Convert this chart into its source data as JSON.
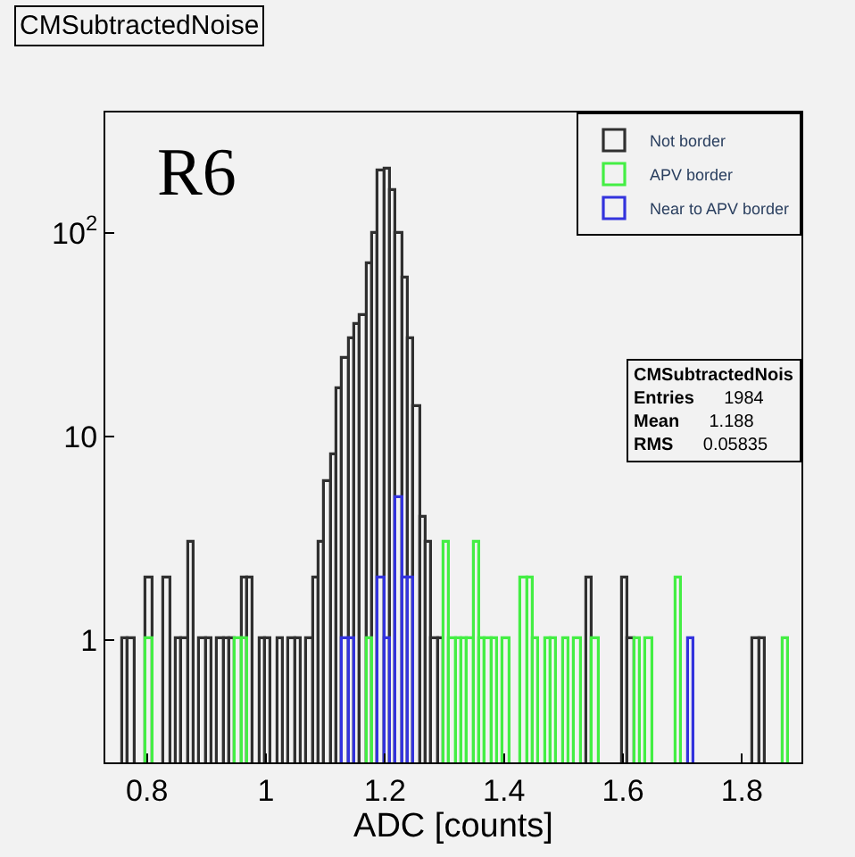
{
  "chart_data": {
    "type": "histogram",
    "title": "CMSubtractedNoise",
    "xlabel": "ADC [counts]",
    "bins": [
      0.73,
      0.74,
      0.75,
      0.76,
      0.77,
      0.78,
      0.79,
      0.8,
      0.81,
      0.82,
      0.83,
      0.84,
      0.85,
      0.86,
      0.87,
      0.88,
      0.89,
      0.9,
      0.91,
      0.92,
      0.93,
      0.94,
      0.95,
      0.96,
      0.97,
      0.98,
      0.99,
      1.0,
      1.01,
      1.02,
      1.03,
      1.04,
      1.05,
      1.06,
      1.07,
      1.08,
      1.09,
      1.1,
      1.11,
      1.12,
      1.13,
      1.14,
      1.15,
      1.16,
      1.17,
      1.18,
      1.19,
      1.2,
      1.21,
      1.22,
      1.23,
      1.24,
      1.25,
      1.26,
      1.27,
      1.28,
      1.29,
      1.3,
      1.31,
      1.32,
      1.33,
      1.34,
      1.35,
      1.36,
      1.37,
      1.38,
      1.39,
      1.4,
      1.41,
      1.42,
      1.43,
      1.44,
      1.45,
      1.46,
      1.47,
      1.48,
      1.49,
      1.5,
      1.51,
      1.52,
      1.53,
      1.54,
      1.55,
      1.56,
      1.57,
      1.58,
      1.59,
      1.6,
      1.61,
      1.62,
      1.63,
      1.64,
      1.65,
      1.66,
      1.67,
      1.68,
      1.69,
      1.7,
      1.71,
      1.72,
      1.73,
      1.74,
      1.75,
      1.76,
      1.77,
      1.78,
      1.79,
      1.8,
      1.81,
      1.82,
      1.83,
      1.84,
      1.85,
      1.86,
      1.87,
      1.88,
      1.89,
      1.9
    ],
    "series": [
      {
        "name": "Not border",
        "color": "#303030",
        "values": [
          null,
          null,
          null,
          1,
          1,
          null,
          null,
          2,
          null,
          null,
          2,
          null,
          1,
          1,
          3,
          null,
          1,
          1,
          null,
          1,
          1,
          1,
          null,
          2,
          2,
          null,
          1,
          1,
          null,
          1,
          null,
          1,
          1,
          null,
          1,
          2,
          3,
          6,
          8,
          17,
          24,
          30,
          35,
          39,
          70,
          98,
          200,
          205,
          160,
          98,
          60,
          30,
          14,
          4,
          3,
          1,
          1,
          null,
          null,
          null,
          null,
          null,
          null,
          null,
          null,
          null,
          null,
          null,
          null,
          null,
          null,
          null,
          null,
          null,
          null,
          null,
          null,
          null,
          null,
          null,
          null,
          2,
          null,
          null,
          null,
          null,
          null,
          2,
          1,
          null,
          null,
          null,
          null,
          null,
          null,
          null,
          null,
          null,
          null,
          null,
          null,
          null,
          null,
          null,
          null,
          null,
          null,
          null,
          null,
          1,
          1,
          null,
          null,
          null,
          null,
          null,
          null
        ]
      },
      {
        "name": "APV border",
        "color": "#44ee44",
        "values": [
          null,
          null,
          null,
          null,
          null,
          null,
          null,
          1,
          null,
          null,
          null,
          null,
          null,
          null,
          null,
          null,
          null,
          null,
          null,
          null,
          null,
          null,
          1,
          1,
          null,
          null,
          null,
          null,
          null,
          null,
          null,
          null,
          null,
          null,
          null,
          null,
          null,
          null,
          null,
          null,
          null,
          null,
          null,
          null,
          1,
          null,
          null,
          null,
          null,
          null,
          null,
          null,
          null,
          null,
          null,
          null,
          null,
          3,
          1,
          1,
          1,
          1,
          3,
          1,
          1,
          1,
          null,
          1,
          null,
          null,
          2,
          2,
          1,
          null,
          1,
          1,
          null,
          1,
          null,
          1,
          null,
          null,
          1,
          null,
          null,
          null,
          null,
          null,
          null,
          1,
          null,
          1,
          null,
          null,
          null,
          null,
          2,
          null,
          null,
          null,
          null,
          null,
          null,
          null,
          null,
          null,
          null,
          null,
          null,
          null,
          null,
          null,
          null,
          null,
          1,
          null,
          null
        ]
      },
      {
        "name": "Near to APV border",
        "color": "#3333dd",
        "values": [
          null,
          null,
          null,
          null,
          null,
          null,
          null,
          null,
          null,
          null,
          null,
          null,
          null,
          null,
          null,
          null,
          null,
          null,
          null,
          null,
          null,
          null,
          null,
          null,
          null,
          null,
          null,
          null,
          null,
          null,
          null,
          null,
          null,
          null,
          null,
          null,
          null,
          null,
          null,
          null,
          1,
          1,
          null,
          null,
          null,
          null,
          2,
          1,
          null,
          5,
          2,
          2,
          null,
          null,
          null,
          null,
          null,
          null,
          null,
          null,
          null,
          null,
          null,
          null,
          null,
          null,
          null,
          null,
          null,
          null,
          null,
          null,
          null,
          null,
          null,
          null,
          null,
          null,
          null,
          null,
          null,
          null,
          null,
          null,
          null,
          null,
          null,
          null,
          null,
          null,
          null,
          null,
          null,
          null,
          null,
          null,
          null,
          null,
          1,
          null,
          null,
          null,
          null,
          null,
          null,
          null,
          null,
          null,
          null,
          null,
          null,
          null,
          null,
          null,
          null,
          null,
          null
        ]
      }
    ],
    "xlim": [
      0.73,
      1.9
    ],
    "xticks": [
      0.8,
      1,
      1.2,
      1.4,
      1.6,
      1.8
    ],
    "ylim": [
      0.25,
      390
    ],
    "yticks": [
      1,
      10,
      {
        "value": 100,
        "label": "10$^{2}$"
      }
    ],
    "log": "y",
    "grid": false,
    "legend": "top right",
    "annotations": [
      "R6",
      "CMSubtractedNois",
      "Entries",
      "1984",
      "Mean",
      "1.188",
      "RMS",
      "0.05835"
    ]
  }
}
